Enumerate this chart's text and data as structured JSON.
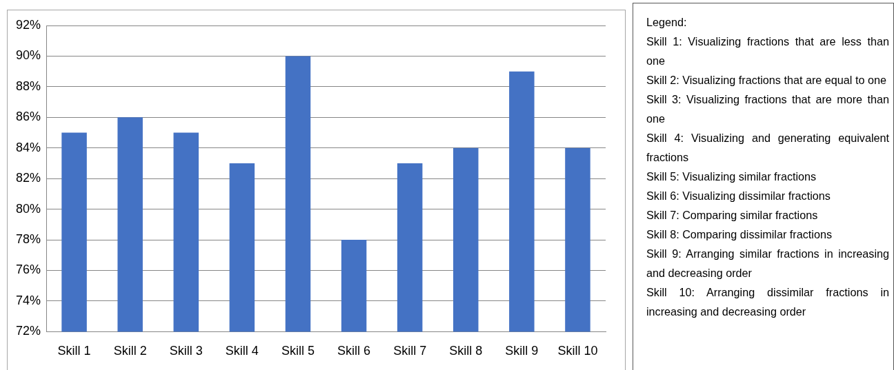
{
  "chart_data": {
    "type": "bar",
    "categories": [
      "Skill 1",
      "Skill 2",
      "Skill 3",
      "Skill 4",
      "Skill 5",
      "Skill 6",
      "Skill 7",
      "Skill 8",
      "Skill 9",
      "Skill 10"
    ],
    "values": [
      85,
      86,
      85,
      83,
      90,
      78,
      83,
      84,
      89,
      84
    ],
    "color": "#4472c4",
    "ylim": [
      72,
      92
    ],
    "yticks": [
      {
        "value": 72,
        "label": "72%"
      },
      {
        "value": 74,
        "label": "74%"
      },
      {
        "value": 76,
        "label": "76%"
      },
      {
        "value": 78,
        "label": "78%"
      },
      {
        "value": 80,
        "label": "80%"
      },
      {
        "value": 82,
        "label": "82%"
      },
      {
        "value": 84,
        "label": "84%"
      },
      {
        "value": 86,
        "label": "86%"
      },
      {
        "value": 88,
        "label": "88%"
      },
      {
        "value": 90,
        "label": "90%"
      },
      {
        "value": 92,
        "label": "92%"
      }
    ],
    "grid": "y",
    "legend": false,
    "annotations": [
      "Legend:",
      "Skill 1: Visualizing fractions that are less than one",
      "Skill 2: Visualizing fractions that are equal to one",
      "Skill 3: Visualizing fractions that are more than one",
      "Skill 4: Visualizing and generating equivalent fractions",
      "Skill 5: Visualizing similar fractions",
      "Skill 6: Visualizing dissimilar fractions",
      "Skill 7: Comparing similar fractions",
      "Skill 8: Comparing dissimilar fractions",
      "Skill 9: Arranging similar fractions in increasing and decreasing order",
      "Skill 10: Arranging dissimilar fractions in increasing and decreasing order"
    ]
  }
}
